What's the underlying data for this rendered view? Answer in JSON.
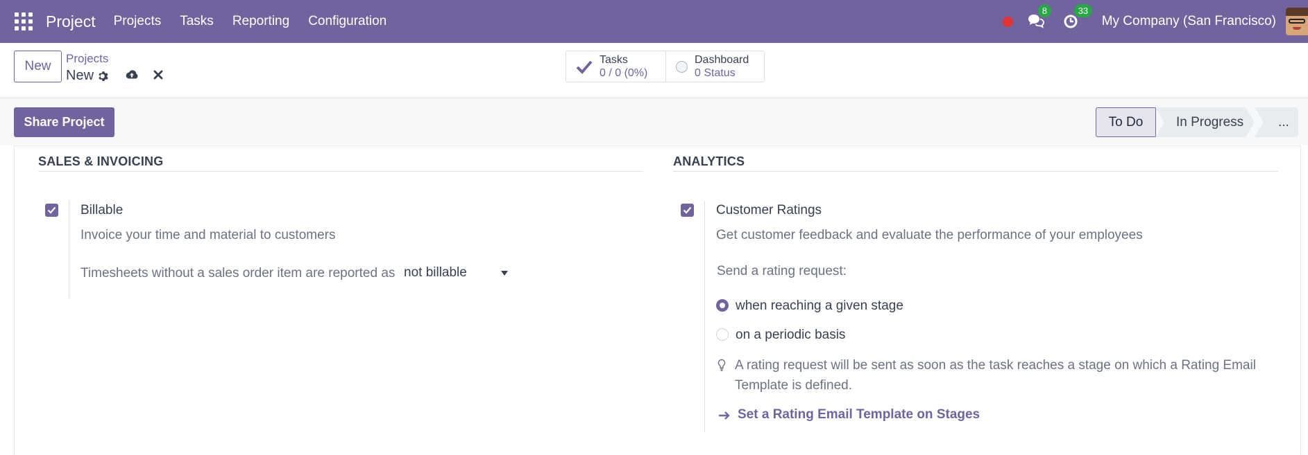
{
  "navbar": {
    "app_name": "Project",
    "menus": [
      "Projects",
      "Tasks",
      "Reporting",
      "Configuration"
    ],
    "chat_count": "8",
    "activity_count": "33",
    "company": "My Company (San Francisco)",
    "color": "#71639e"
  },
  "control": {
    "new_label": "New",
    "breadcrumb_parent": "Projects",
    "breadcrumb_current": "New",
    "stats": {
      "tasks_label": "Tasks",
      "tasks_value": "0 / 0 (0%)",
      "dashboard_label": "Dashboard",
      "dashboard_value": "0 Status"
    }
  },
  "header": {
    "share_label": "Share Project",
    "stages": [
      "To Do",
      "In Progress",
      "..."
    ],
    "active_stage": "To Do"
  },
  "sales": {
    "group_title": "SALES & INVOICING",
    "billable_title": "Billable",
    "billable_checked": true,
    "billable_desc": "Invoice your time and material to customers",
    "timesheets_label": "Timesheets without a sales order item are reported as",
    "timesheets_value": "not billable"
  },
  "analytics": {
    "group_title": "ANALYTICS",
    "ratings_title": "Customer Ratings",
    "ratings_checked": true,
    "ratings_desc": "Get customer feedback and evaluate the performance of your employees",
    "send_label": "Send a rating request:",
    "options": [
      "when reaching a given stage",
      "on a periodic basis"
    ],
    "selected_option": "when reaching a given stage",
    "help_text": "A rating request will be sent as soon as the task reaches a stage on which a Rating Email Template is defined.",
    "link_label": "Set a Rating Email Template on Stages"
  }
}
